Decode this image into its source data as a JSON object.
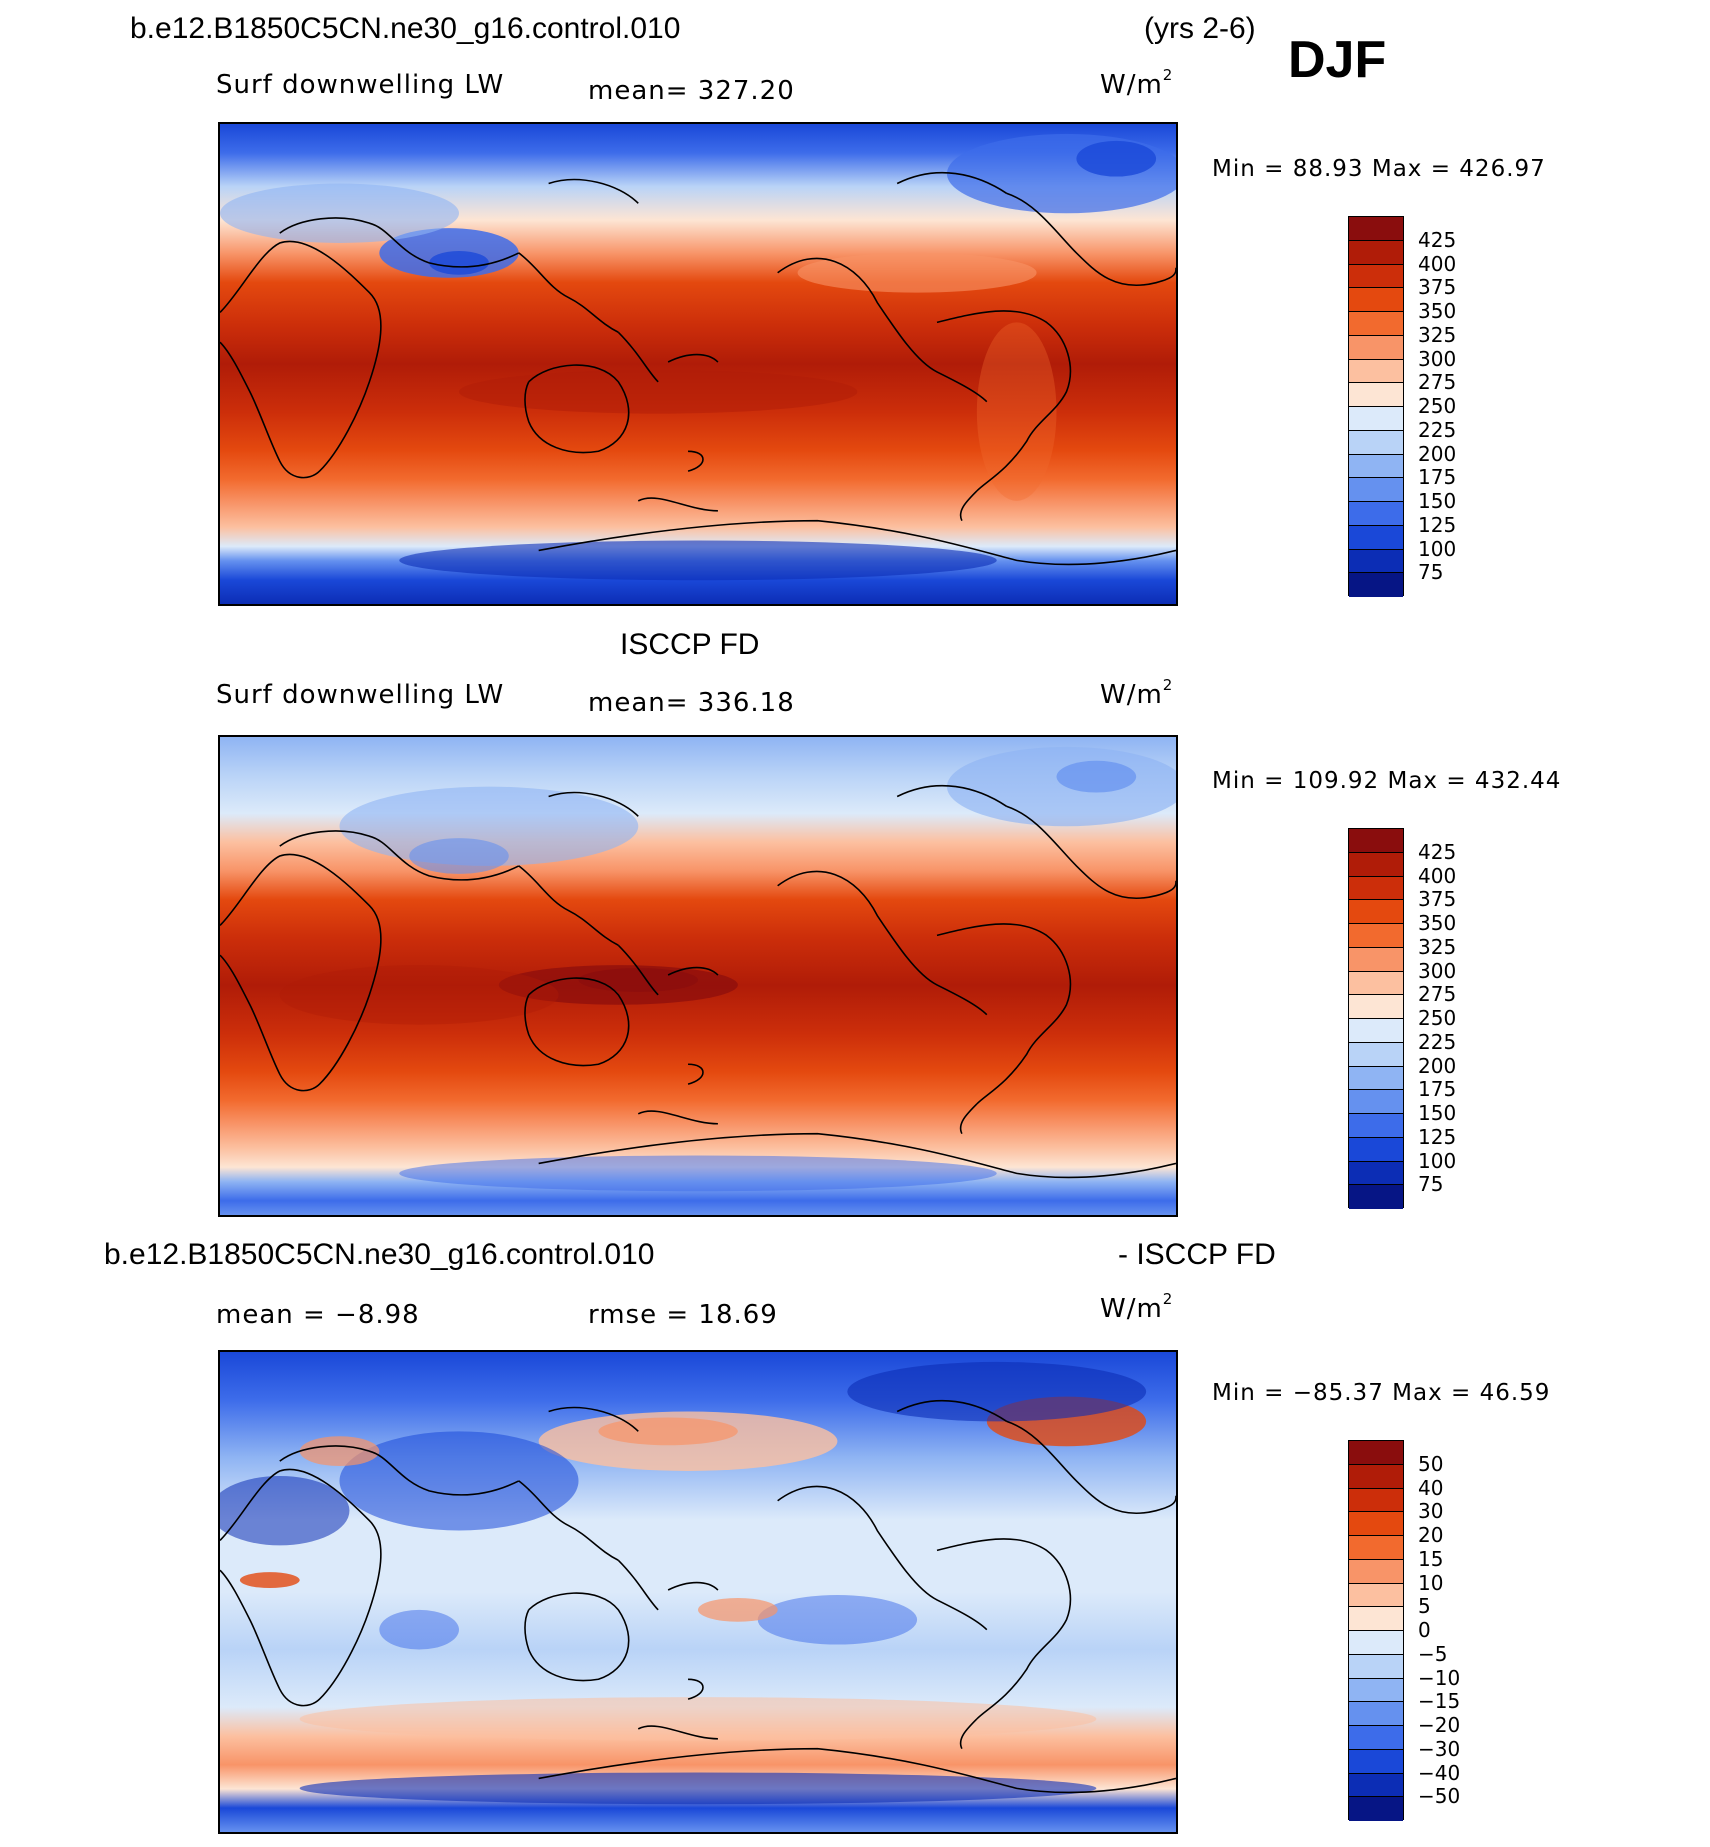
{
  "figure": {
    "case_name": "b.e12.B1850C5CN.ne30_g16.control.010",
    "years": "(yrs 2-6)",
    "season": "DJF"
  },
  "panels": [
    {
      "title_left": "b.e12.B1850C5CN.ne30_g16.control.010",
      "variable": "Surf downwelling LW",
      "stat": "mean= 327.20",
      "units": "W/m",
      "units_sup": "2",
      "minmax": "Min =   88.93 Max = 426.97",
      "colorbar_labels": [
        "425",
        "400",
        "375",
        "350",
        "325",
        "300",
        "275",
        "250",
        "225",
        "200",
        "175",
        "150",
        "125",
        "100",
        "75"
      ],
      "colorbar_colors": [
        "#8a0d0d",
        "#b01c08",
        "#cc2e0a",
        "#e4490f",
        "#f26a2e",
        "#f89468",
        "#fcc0a0",
        "#fde5d4",
        "#dceafa",
        "#b9d3f7",
        "#8fb4f3",
        "#6591ef",
        "#3d6cea",
        "#1a48d8",
        "#0c2db5",
        "#061585"
      ]
    },
    {
      "title_center": "ISCCP FD",
      "variable": "Surf downwelling LW",
      "stat": "mean= 336.18",
      "units": "W/m",
      "units_sup": "2",
      "minmax": "Min = 109.92 Max = 432.44",
      "colorbar_labels": [
        "425",
        "400",
        "375",
        "350",
        "325",
        "300",
        "275",
        "250",
        "225",
        "200",
        "175",
        "150",
        "125",
        "100",
        "75"
      ],
      "colorbar_colors": [
        "#8a0d0d",
        "#b01c08",
        "#cc2e0a",
        "#e4490f",
        "#f26a2e",
        "#f89468",
        "#fcc0a0",
        "#fde5d4",
        "#dceafa",
        "#b9d3f7",
        "#8fb4f3",
        "#6591ef",
        "#3d6cea",
        "#1a48d8",
        "#0c2db5",
        "#061585"
      ]
    },
    {
      "title_left": "b.e12.B1850C5CN.ne30_g16.control.010",
      "title_right": "- ISCCP FD",
      "stat_mean": "mean =   −8.98",
      "stat_rmse": "rmse =   18.69",
      "units": "W/m",
      "units_sup": "2",
      "minmax": "Min = −85.37 Max =  46.59",
      "colorbar_labels": [
        "50",
        "40",
        "30",
        "20",
        "15",
        "10",
        "5",
        "0",
        "−5",
        "−10",
        "−15",
        "−20",
        "−30",
        "−40",
        "−50"
      ],
      "colorbar_colors": [
        "#8a0d0d",
        "#b01c08",
        "#cc2e0a",
        "#e4490f",
        "#f26a2e",
        "#f89468",
        "#fcc0a0",
        "#fde5d4",
        "#dceafa",
        "#b9d3f7",
        "#8fb4f3",
        "#6591ef",
        "#3d6cea",
        "#1a48d8",
        "#0c2db5",
        "#061585"
      ]
    }
  ]
}
